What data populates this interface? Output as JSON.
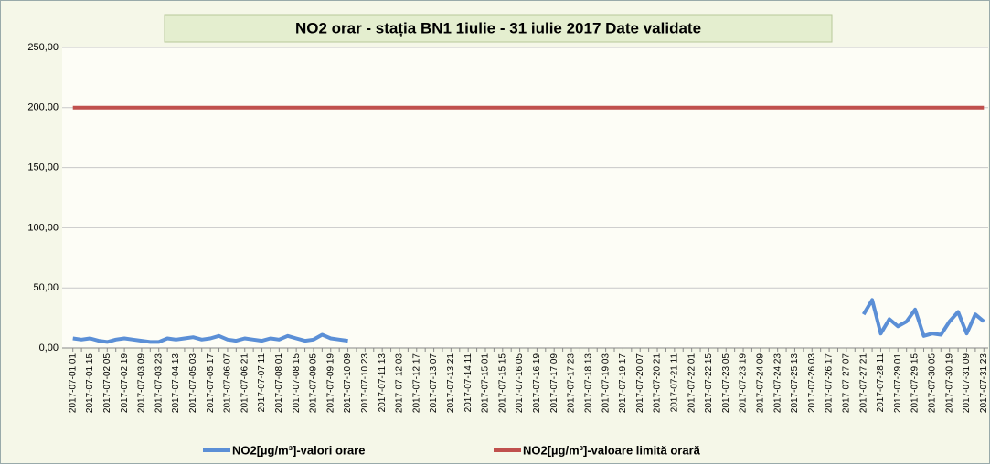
{
  "chart_data": {
    "type": "line",
    "title": "NO2 orar - stația BN1 1iulie - 31 iulie 2017  Date validate",
    "categories": [
      "2017-07-01 01",
      null,
      "2017-07-01 15",
      null,
      "2017-07-02 05",
      null,
      "2017-07-02 19",
      null,
      "2017-07-03 09",
      null,
      "2017-07-03 23",
      null,
      "2017-07-04 13",
      null,
      "2017-07-05 03",
      null,
      "2017-07-05 17",
      null,
      "2017-07-06 07",
      null,
      "2017-07-06 21",
      null,
      "2017-07-07 11",
      null,
      "2017-07-08 01",
      null,
      "2017-07-08 15",
      null,
      "2017-07-09 05",
      null,
      "2017-07-09 19",
      null,
      "2017-07-10 09",
      null,
      "2017-07-10 23",
      null,
      "2017-07-11 13",
      null,
      "2017-07-12 03",
      null,
      "2017-07-12 17",
      null,
      "2017-07-13 07",
      null,
      "2017-07-13 21",
      null,
      "2017-07-14 11",
      null,
      "2017-07-15 01",
      null,
      "2017-07-15 15",
      null,
      "2017-07-16 05",
      null,
      "2017-07-16 19",
      null,
      "2017-07-17 09",
      null,
      "2017-07-17 23",
      null,
      "2017-07-18 13",
      null,
      "2017-07-19 03",
      null,
      "2017-07-19 17",
      null,
      "2017-07-20 07",
      null,
      "2017-07-20 21",
      null,
      "2017-07-21 11",
      null,
      "2017-07-22 01",
      null,
      "2017-07-22 15",
      null,
      "2017-07-23 05",
      null,
      "2017-07-23 19",
      null,
      "2017-07-24 09",
      null,
      "2017-07-24 23",
      null,
      "2017-07-25 13",
      null,
      "2017-07-26 03",
      null,
      "2017-07-26 17",
      null,
      "2017-07-27 07",
      null,
      "2017-07-27 21",
      null,
      "2017-07-28 11",
      null,
      "2017-07-29 01",
      null,
      "2017-07-29 15",
      null,
      "2017-07-30 05",
      null,
      "2017-07-30 19",
      null,
      "2017-07-31 09",
      null,
      "2017-07-31 23"
    ],
    "series": [
      {
        "name": "NO2[µg/m³]-valori orare",
        "color": "#5b8fd6",
        "values": [
          8,
          7,
          8,
          6,
          5,
          7,
          8,
          7,
          6,
          5,
          5,
          8,
          7,
          8,
          9,
          7,
          8,
          10,
          7,
          6,
          8,
          7,
          6,
          8,
          7,
          10,
          8,
          6,
          7,
          11,
          8,
          7,
          6,
          null,
          null,
          null,
          null,
          null,
          null,
          null,
          null,
          null,
          null,
          null,
          null,
          null,
          null,
          null,
          null,
          null,
          null,
          null,
          null,
          null,
          null,
          null,
          null,
          null,
          null,
          null,
          null,
          null,
          null,
          null,
          null,
          null,
          null,
          null,
          null,
          null,
          null,
          null,
          null,
          null,
          null,
          null,
          null,
          null,
          null,
          null,
          null,
          null,
          null,
          null,
          null,
          null,
          null,
          null,
          null,
          null,
          null,
          null,
          28,
          40,
          12,
          24,
          18,
          22,
          32,
          10,
          12,
          11,
          22,
          30,
          12,
          28,
          22
        ]
      },
      {
        "name": "NO2[µg/m³]-valoare limită orară",
        "color": "#c0504d",
        "values": [
          200,
          200,
          200,
          200,
          200,
          200,
          200,
          200,
          200,
          200,
          200,
          200,
          200,
          200,
          200,
          200,
          200,
          200,
          200,
          200,
          200,
          200,
          200,
          200,
          200,
          200,
          200,
          200,
          200,
          200,
          200,
          200,
          200,
          200,
          200,
          200,
          200,
          200,
          200,
          200,
          200,
          200,
          200,
          200,
          200,
          200,
          200,
          200,
          200,
          200,
          200,
          200,
          200,
          200,
          200,
          200,
          200,
          200,
          200,
          200,
          200,
          200,
          200,
          200,
          200,
          200,
          200,
          200,
          200,
          200,
          200,
          200,
          200,
          200,
          200,
          200,
          200,
          200,
          200,
          200,
          200,
          200,
          200,
          200,
          200,
          200,
          200,
          200,
          200,
          200,
          200,
          200,
          200,
          200,
          200,
          200,
          200,
          200,
          200,
          200,
          200,
          200,
          200,
          200,
          200,
          200,
          200
        ]
      }
    ],
    "ylim": [
      0,
      250
    ],
    "yticks": [
      {
        "value": 0,
        "label": "0,00"
      },
      {
        "value": 50,
        "label": "50,00"
      },
      {
        "value": 100,
        "label": "100,00"
      },
      {
        "value": 150,
        "label": "150,00"
      },
      {
        "value": 200,
        "label": "200,00"
      },
      {
        "value": 250,
        "label": "250,00"
      }
    ],
    "grid": true
  }
}
